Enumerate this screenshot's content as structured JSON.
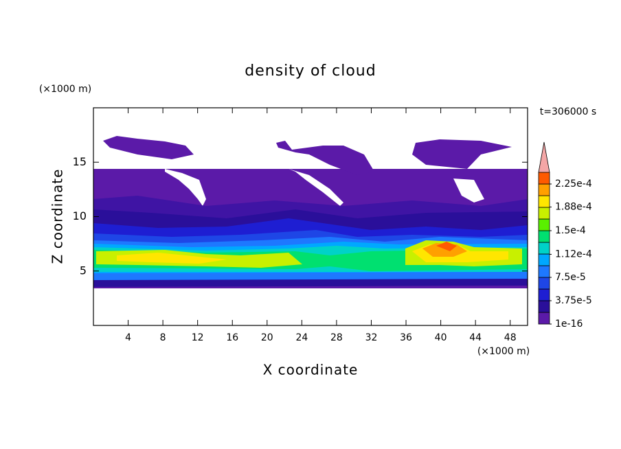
{
  "chart_data": {
    "type": "contour",
    "title": "density of cloud",
    "x_label": "X coordinate",
    "y_label": "Z coordinate",
    "x_unit_label": "(×1000 m)",
    "y_unit_label": "(×1000 m)",
    "time_label": "t=306000 s",
    "xlim": [
      0,
      50
    ],
    "xticks": [
      4,
      8,
      12,
      16,
      20,
      24,
      28,
      32,
      36,
      40,
      44,
      48
    ],
    "ylim": [
      0,
      20
    ],
    "yticks": [
      5,
      10,
      15
    ],
    "colorbar_levels": [
      1e-16,
      1.875e-05,
      3.75e-05,
      5.625e-05,
      7.5e-05,
      9.375e-05,
      0.0001125,
      0.00013125,
      0.00015,
      0.00016875,
      0.0001875,
      0.00020625,
      0.000225,
      0.00024375
    ],
    "colorbar_colors": [
      "#5b1aa8",
      "#2a0f9a",
      "#1e1ed2",
      "#1e46e6",
      "#1e78ff",
      "#00a8ff",
      "#00d2c8",
      "#00e070",
      "#5af000",
      "#c8f000",
      "#ffe600",
      "#ffa000",
      "#ff5a00"
    ],
    "colorbar_extend_color": "#f4a6a6",
    "colorbar_ticks": [
      {
        "value": 1e-16,
        "label": "1e-16"
      },
      {
        "value": 3.75e-05,
        "label": "3.75e-5"
      },
      {
        "value": 7.5e-05,
        "label": "7.5e-5"
      },
      {
        "value": 0.000112,
        "label": "1.12e-4"
      },
      {
        "value": 0.00015,
        "label": "1.5e-4"
      },
      {
        "value": 0.000188,
        "label": "1.88e-4"
      },
      {
        "value": 0.000225,
        "label": "2.25e-4"
      }
    ]
  }
}
